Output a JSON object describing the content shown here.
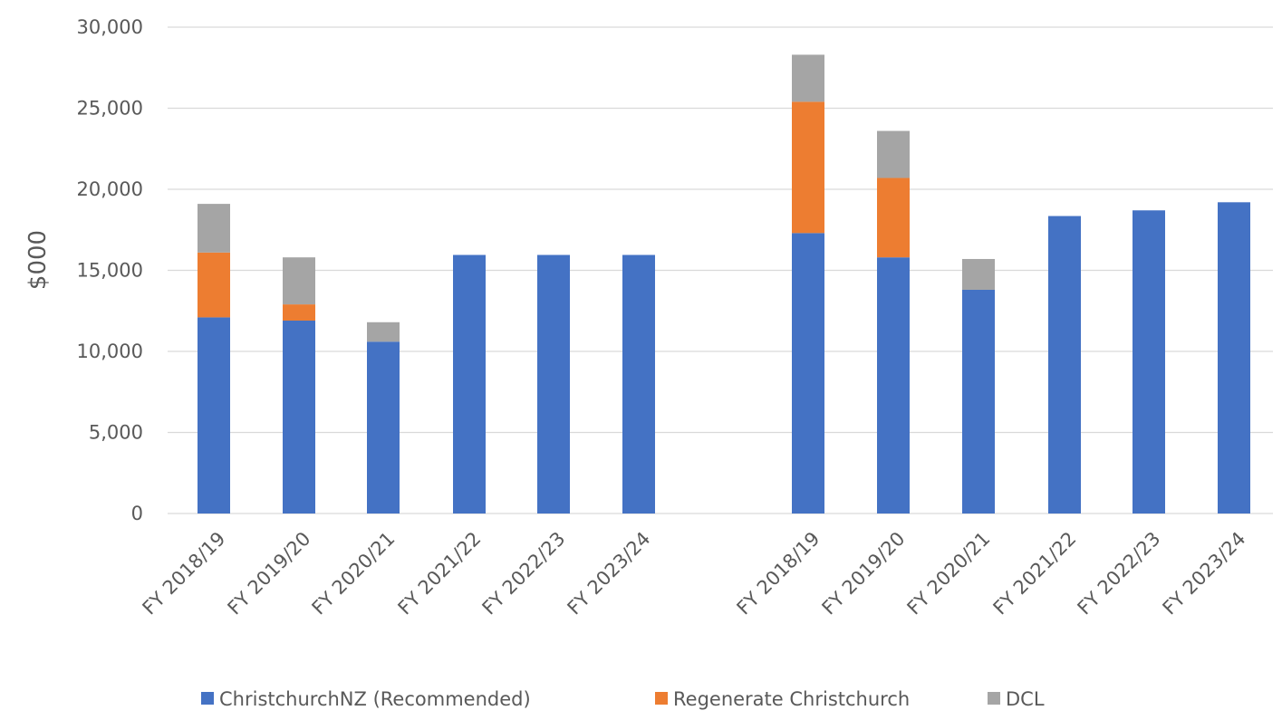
{
  "chart_data": {
    "type": "bar",
    "stacked": true,
    "ylabel": "$000",
    "xlabel": "",
    "ylim": [
      0,
      30000
    ],
    "yticks": [
      0,
      5000,
      10000,
      15000,
      20000,
      25000,
      30000
    ],
    "ytick_labels": [
      "0",
      "5,000",
      "10,000",
      "15,000",
      "20,000",
      "25,000",
      "30,000"
    ],
    "grid": true,
    "legend_position": "bottom",
    "groups": [
      {
        "categories": [
          "FY 2018/19",
          "FY 2019/20",
          "FY 2020/21",
          "FY 2021/22",
          "FY 2022/23",
          "FY 2023/24"
        ],
        "series": [
          {
            "name": "ChristchurchNZ (Recommended)",
            "values": [
              12100,
              11900,
              10600,
              15950,
              15950,
              15950
            ]
          },
          {
            "name": "Regenerate Christchurch",
            "values": [
              4000,
              1000,
              0,
              0,
              0,
              0
            ]
          },
          {
            "name": "DCL",
            "values": [
              3000,
              2900,
              1200,
              0,
              0,
              0
            ]
          }
        ]
      },
      {
        "categories": [
          "FY 2018/19",
          "FY 2019/20",
          "FY 2020/21",
          "FY 2021/22",
          "FY 2022/23",
          "FY 2023/24"
        ],
        "series": [
          {
            "name": "ChristchurchNZ (Recommended)",
            "values": [
              17300,
              15800,
              13800,
              18350,
              18700,
              19200
            ]
          },
          {
            "name": "Regenerate Christchurch",
            "values": [
              8100,
              4900,
              0,
              0,
              0,
              0
            ]
          },
          {
            "name": "DCL",
            "values": [
              2900,
              2900,
              1900,
              0,
              0,
              0
            ]
          }
        ]
      }
    ],
    "legend": [
      "ChristchurchNZ (Recommended)",
      "Regenerate Christchurch",
      "DCL"
    ],
    "colors": [
      "#4472C4",
      "#ED7D31",
      "#A5A5A5"
    ],
    "gridline_color": "#D9D9D9"
  }
}
